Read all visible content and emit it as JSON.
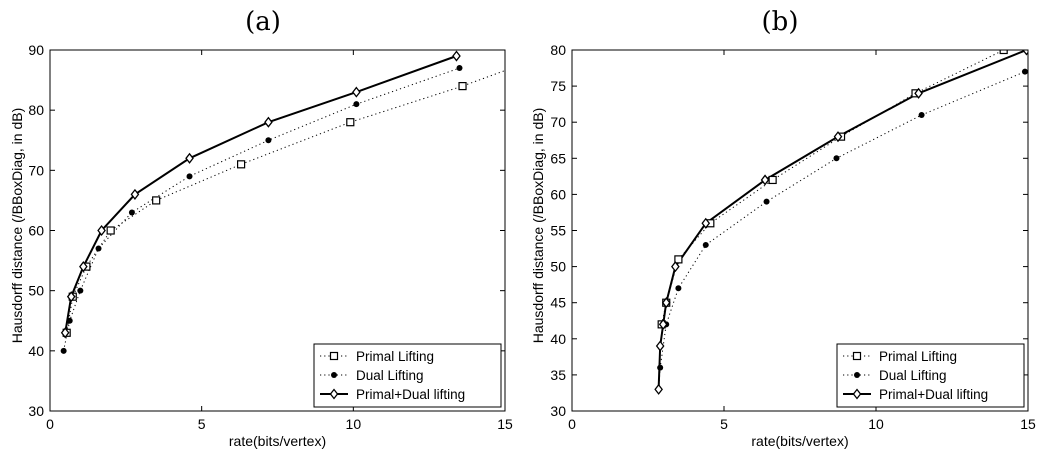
{
  "chart_data": [
    {
      "type": "line",
      "title": "(a)",
      "xlabel": "rate(bits/vertex)",
      "ylabel": "Hausdorff distance (/BBoxDiag, in dB)",
      "xlim": [
        0,
        15
      ],
      "ylim": [
        30,
        90
      ],
      "xticks": [
        0,
        5,
        10,
        15
      ],
      "yticks": [
        30,
        40,
        50,
        60,
        70,
        80,
        90
      ],
      "grid": false,
      "legend_position": "bottom-right",
      "series": [
        {
          "name": "Primal Lifting",
          "line": "dotted",
          "marker": "square",
          "x": [
            0.55,
            0.75,
            1.2,
            2.0,
            3.5,
            6.3,
            9.9,
            13.6,
            15.5
          ],
          "y": [
            43,
            49,
            54,
            60,
            65,
            71,
            78,
            84,
            87.5
          ],
          "marker_count": 8
        },
        {
          "name": "Dual Lifting",
          "line": "dotted",
          "marker": "dot",
          "x": [
            0.45,
            0.65,
            1.0,
            1.6,
            2.7,
            4.6,
            7.2,
            10.1,
            13.5
          ],
          "y": [
            40,
            45,
            50,
            57,
            63,
            69,
            75,
            81,
            87
          ],
          "marker_count": 9
        },
        {
          "name": "Primal+Dual lifting",
          "line": "solid",
          "marker": "diamond",
          "x": [
            0.5,
            0.7,
            1.1,
            1.7,
            2.8,
            4.6,
            7.2,
            10.1,
            13.4
          ],
          "y": [
            43,
            49,
            54,
            60,
            66,
            72,
            78,
            83,
            89
          ],
          "marker_count": 9
        }
      ]
    },
    {
      "type": "line",
      "title": "(b)",
      "xlabel": "rate(bits/vertex)",
      "ylabel": "Hausdorff distance (/BBoxDiag, in dB)",
      "xlim": [
        0,
        15
      ],
      "ylim": [
        30,
        80
      ],
      "xticks": [
        0,
        5,
        10,
        15
      ],
      "yticks": [
        30,
        35,
        40,
        45,
        50,
        55,
        60,
        65,
        70,
        75,
        80
      ],
      "grid": false,
      "legend_position": "bottom-right",
      "series": [
        {
          "name": "Primal Lifting",
          "line": "dotted",
          "marker": "square",
          "x": [
            2.95,
            3.1,
            3.5,
            4.55,
            6.6,
            8.85,
            11.3,
            14.2
          ],
          "y": [
            42,
            45,
            51,
            56,
            62,
            68,
            74,
            80
          ],
          "marker_count": 8
        },
        {
          "name": "Dual Lifting",
          "line": "dotted",
          "marker": "dot",
          "x": [
            2.85,
            2.9,
            3.1,
            3.5,
            4.4,
            6.4,
            8.7,
            11.5,
            14.9
          ],
          "y": [
            33,
            36,
            42,
            47,
            53,
            59,
            65,
            71,
            77
          ],
          "marker_count": 9
        },
        {
          "name": "Primal+Dual lifting",
          "line": "solid",
          "marker": "diamond",
          "x": [
            2.85,
            2.9,
            3.0,
            3.1,
            3.4,
            4.4,
            6.35,
            8.75,
            11.4,
            14.95
          ],
          "y": [
            33,
            39,
            42,
            45,
            50,
            56,
            62,
            68,
            74,
            80
          ],
          "marker_count": 10
        }
      ]
    }
  ]
}
